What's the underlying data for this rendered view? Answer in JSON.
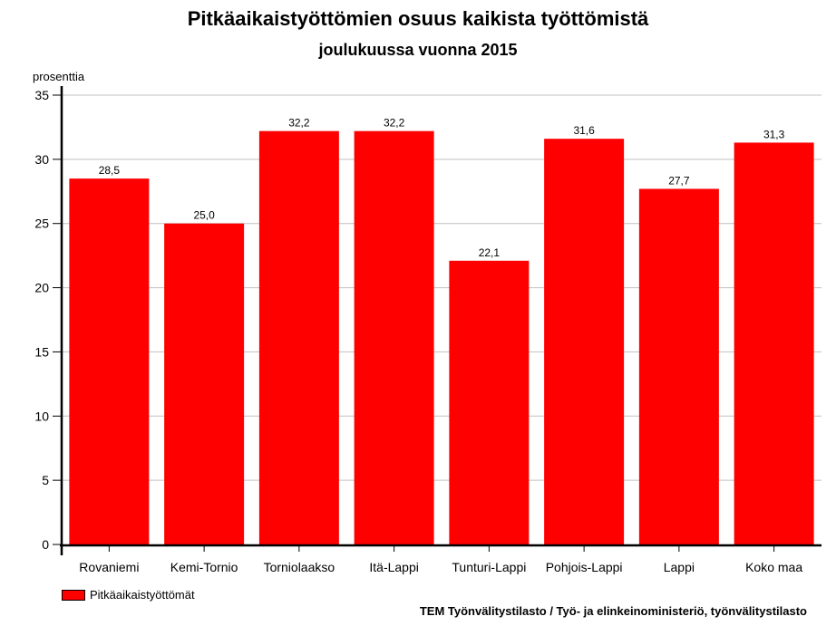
{
  "chart_data": {
    "type": "bar",
    "title": "Pitkäaikaistyöttömien osuus kaikista työttömistä",
    "subtitle": "joulukuussa vuonna 2015",
    "ylabel": "prosenttia",
    "xlabel": "",
    "ylim": [
      0,
      35
    ],
    "yticks": [
      0,
      5,
      10,
      15,
      20,
      25,
      30,
      35
    ],
    "grid": true,
    "legend_position": "bottom-left",
    "categories": [
      "Rovaniemi",
      "Kemi-Tornio",
      "Torniolaakso",
      "Itä-Lappi",
      "Tunturi-Lappi",
      "Pohjois-Lappi",
      "Lappi",
      "Koko maa"
    ],
    "series": [
      {
        "name": "Pitkäaikaistyöttömät",
        "values": [
          28.5,
          25.0,
          32.2,
          32.2,
          22.1,
          31.6,
          27.7,
          31.3
        ],
        "labels": [
          "28,5",
          "25,0",
          "32,2",
          "32,2",
          "22,1",
          "31,6",
          "27,7",
          "31,3"
        ],
        "color": "#ff0000"
      }
    ],
    "source": "TEM Työnvälitystilasto / Työ- ja elinkeinoministeriö, työnvälitystilasto"
  }
}
